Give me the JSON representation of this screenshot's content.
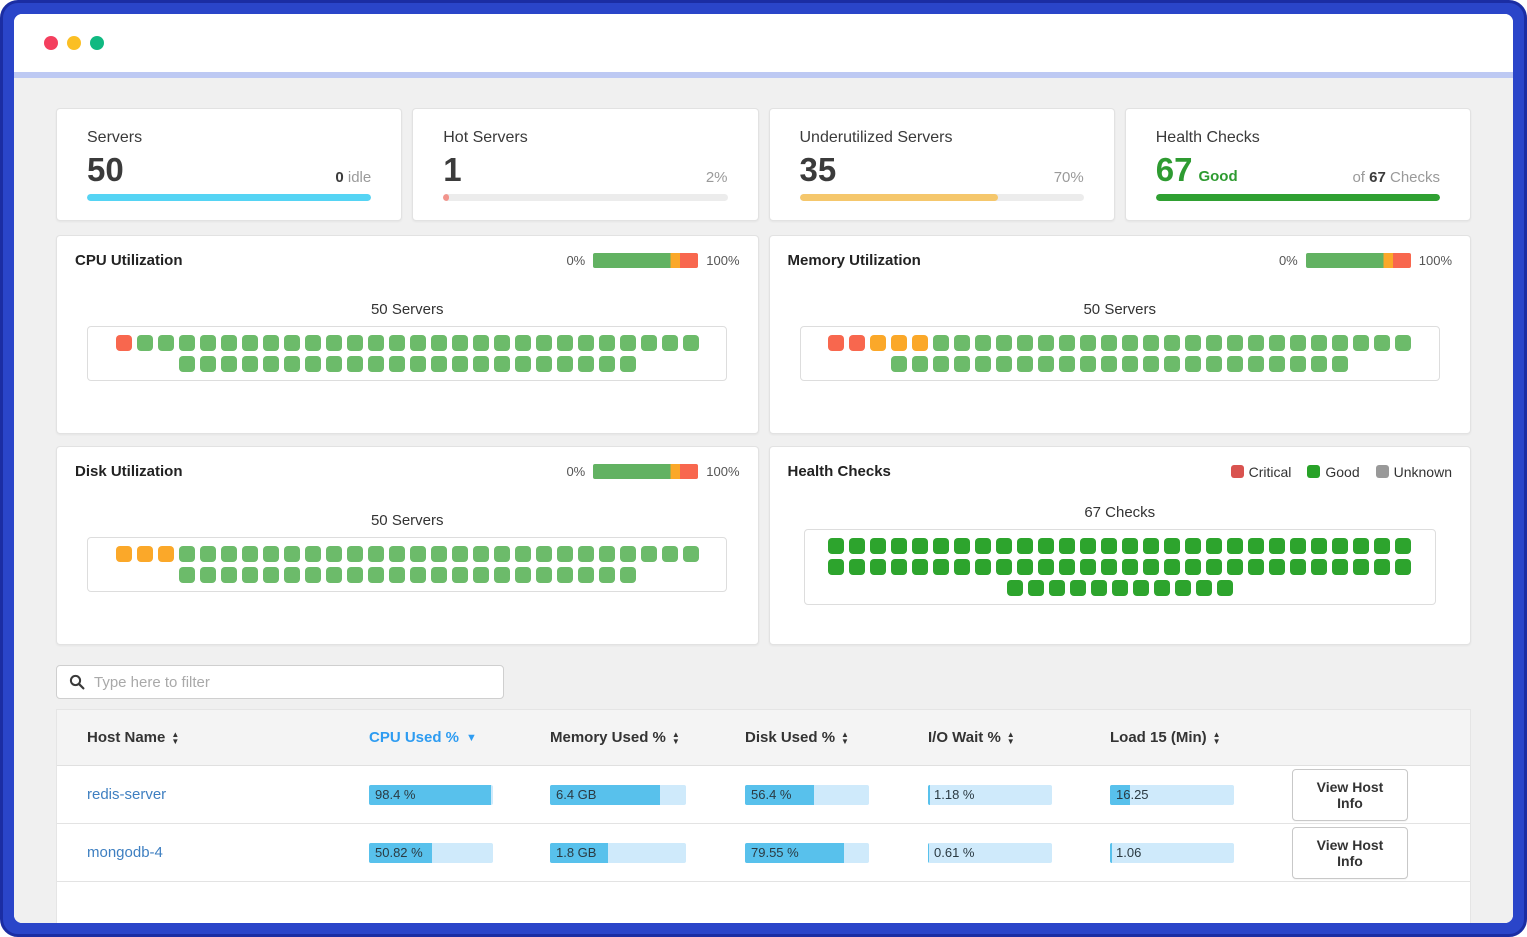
{
  "window": {
    "traffic_lights": [
      {
        "name": "close",
        "color": "#f43f5e"
      },
      {
        "name": "minimize",
        "color": "#fbbf24"
      },
      {
        "name": "maximize",
        "color": "#10b981"
      }
    ]
  },
  "palette": {
    "utilization_low_green": "#6cbb6a",
    "utilization_mid_orange": "#fba829",
    "utilization_high_red": "#f8674e",
    "health_good_green": "#2da42d",
    "table_bar_fill": "#58c1ec",
    "table_bar_track": "#cfeafb",
    "sorted_column_blue": "#2e9cf1",
    "frame_blue": "#2a45c9"
  },
  "stat_cards": [
    {
      "title": "Servers",
      "value": "50",
      "right_strong": "0",
      "right_suffix": " idle",
      "right_prefix": "",
      "bar": {
        "color": "#55d4f4",
        "pct": 100
      }
    },
    {
      "title": "Hot Servers",
      "value": "1",
      "right_strong": "",
      "right_suffix": "2%",
      "right_prefix": "",
      "bar": {
        "color": "#f2948c",
        "pct": 2
      }
    },
    {
      "title": "Underutilized Servers",
      "value": "35",
      "right_strong": "",
      "right_suffix": "70%",
      "right_prefix": "",
      "bar": {
        "color": "#f5c76c",
        "pct": 70
      }
    },
    {
      "title": "Health Checks",
      "value": "67",
      "value_note": "Good",
      "right_prefix": "of ",
      "right_strong": "67",
      "right_suffix": " Checks",
      "bar": {
        "color": "#2fa032",
        "pct": 100
      }
    }
  ],
  "panels": {
    "cpu": {
      "title": "CPU Utilization",
      "scale": {
        "min": "0%",
        "max": "100%"
      },
      "count_label": "50 Servers",
      "grid": {
        "rows": [
          28,
          22
        ],
        "segments": [
          {
            "color": "#f8674e",
            "count": 1
          },
          {
            "color": "#6cbb6a",
            "count": 49
          }
        ]
      }
    },
    "memory": {
      "title": "Memory Utilization",
      "scale": {
        "min": "0%",
        "max": "100%"
      },
      "count_label": "50 Servers",
      "grid": {
        "rows": [
          28,
          22
        ],
        "segments": [
          {
            "color": "#f8674e",
            "count": 2
          },
          {
            "color": "#fba829",
            "count": 3
          },
          {
            "color": "#6cbb6a",
            "count": 45
          }
        ]
      }
    },
    "disk": {
      "title": "Disk Utilization",
      "scale": {
        "min": "0%",
        "max": "100%"
      },
      "count_label": "50 Servers",
      "grid": {
        "rows": [
          28,
          22
        ],
        "segments": [
          {
            "color": "#fba829",
            "count": 3
          },
          {
            "color": "#6cbb6a",
            "count": 47
          }
        ]
      }
    },
    "health": {
      "title": "Health Checks",
      "legend": [
        {
          "label": "Critical",
          "color": "#d9534f"
        },
        {
          "label": "Good",
          "color": "#28a228"
        },
        {
          "label": "Unknown",
          "color": "#999999"
        }
      ],
      "count_label": "67 Checks",
      "grid": {
        "rows": [
          28,
          28,
          11
        ],
        "segments": [
          {
            "color": "#2da42d",
            "count": 67
          }
        ]
      }
    }
  },
  "filter": {
    "placeholder": "Type here to filter"
  },
  "table": {
    "columns": [
      {
        "label": "Host Name",
        "sort": "both"
      },
      {
        "label": "CPU Used %",
        "sort": "desc",
        "active": true
      },
      {
        "label": "Memory Used %",
        "sort": "both"
      },
      {
        "label": "Disk Used %",
        "sort": "both"
      },
      {
        "label": "I/O Wait %",
        "sort": "both"
      },
      {
        "label": "Load 15 (Min)",
        "sort": "both"
      }
    ],
    "rows": [
      {
        "host": "redis-server",
        "cpu": {
          "text": "98.4 %",
          "pct": 98
        },
        "memory": {
          "text": "6.4 GB",
          "pct": 81
        },
        "disk": {
          "text": "56.4 %",
          "pct": 56
        },
        "io": {
          "text": "1.18 %",
          "pct": 2
        },
        "load": {
          "text": "16.25",
          "pct": 16
        },
        "action": "View Host Info"
      },
      {
        "host": "mongodb-4",
        "cpu": {
          "text": "50.82 %",
          "pct": 51
        },
        "memory": {
          "text": "1.8 GB",
          "pct": 43
        },
        "disk": {
          "text": "79.55 %",
          "pct": 80
        },
        "io": {
          "text": "0.61 %",
          "pct": 1
        },
        "load": {
          "text": "1.06",
          "pct": 2
        },
        "action": "View Host Info"
      }
    ]
  }
}
